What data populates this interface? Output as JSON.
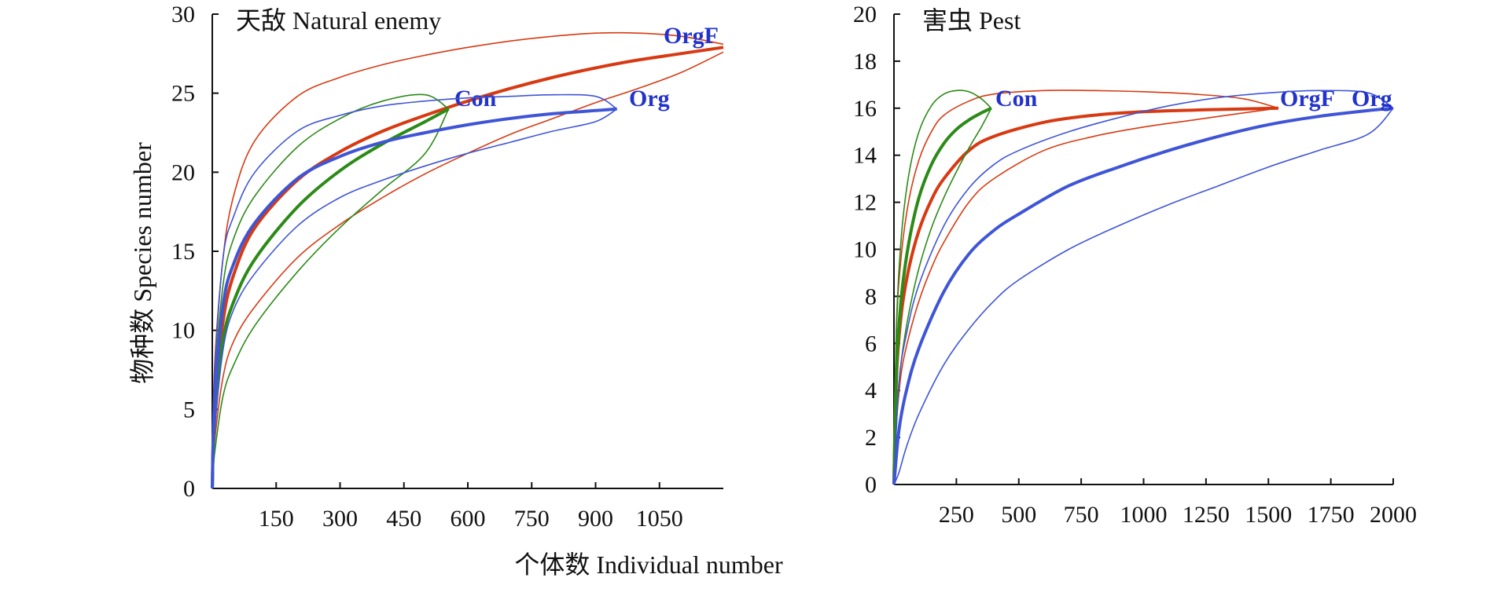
{
  "figure": {
    "y_axis_title": "物种数 Species number",
    "x_axis_title": "个体数 Individual number"
  },
  "chart_data": [
    {
      "type": "line",
      "title": "天敌 Natural enemy",
      "ylabel": "物种数 Species number",
      "xlabel": "个体数 Individual number",
      "xlim": [
        0,
        1200
      ],
      "ylim": [
        0,
        30
      ],
      "x_ticks": [
        150,
        300,
        450,
        600,
        750,
        900,
        1050
      ],
      "y_ticks": [
        0,
        5,
        10,
        15,
        20,
        25,
        30
      ],
      "grid": false,
      "series": [
        {
          "name": "OrgF",
          "color": "#d73a12",
          "x": [
            0,
            5,
            25,
            50,
            100,
            200,
            300,
            400,
            500,
            600,
            700,
            800,
            900,
            1000,
            1100,
            1200
          ],
          "mean": [
            0,
            5.0,
            10.5,
            13.5,
            16.5,
            19.5,
            21.3,
            22.6,
            23.6,
            24.5,
            25.3,
            26.0,
            26.6,
            27.1,
            27.5,
            27.9
          ],
          "upper": [
            0,
            7.5,
            14.5,
            18.5,
            22.0,
            24.8,
            26.0,
            26.8,
            27.4,
            27.9,
            28.3,
            28.6,
            28.8,
            28.8,
            28.6,
            28.1
          ],
          "lower": [
            0,
            2.8,
            7.0,
            9.3,
            11.5,
            14.6,
            16.7,
            18.4,
            19.9,
            21.2,
            22.4,
            23.4,
            24.4,
            25.3,
            26.3,
            27.6
          ]
        },
        {
          "name": "Con",
          "color": "#2c8a17",
          "x": [
            0,
            5,
            25,
            50,
            100,
            200,
            300,
            400,
            500,
            555
          ],
          "mean": [
            0,
            4.2,
            9.3,
            11.8,
            14.5,
            17.8,
            20.1,
            21.8,
            23.2,
            24.0
          ],
          "upper": [
            0,
            6.3,
            12.8,
            15.8,
            18.5,
            21.6,
            23.4,
            24.5,
            24.9,
            24.0
          ],
          "lower": [
            0,
            2.1,
            5.8,
            7.8,
            10.3,
            13.7,
            16.5,
            18.9,
            21.2,
            24.0
          ]
        },
        {
          "name": "Org",
          "color": "#3f55d6",
          "x": [
            0,
            5,
            25,
            50,
            100,
            200,
            300,
            400,
            500,
            600,
            700,
            800,
            900,
            950
          ],
          "mean": [
            0,
            5.2,
            11.5,
            14.2,
            16.8,
            19.6,
            21.0,
            21.9,
            22.5,
            23.0,
            23.4,
            23.7,
            23.9,
            24.0
          ],
          "upper": [
            0,
            7.0,
            14.5,
            17.2,
            20.0,
            22.6,
            23.6,
            24.2,
            24.5,
            24.7,
            24.8,
            24.9,
            24.8,
            24.0
          ],
          "lower": [
            0,
            3.4,
            8.7,
            11.3,
            13.6,
            16.6,
            18.4,
            19.5,
            20.4,
            21.2,
            21.9,
            22.6,
            23.2,
            24.0
          ]
        }
      ]
    },
    {
      "type": "line",
      "title": "害虫 Pest",
      "xlim": [
        0,
        2000
      ],
      "ylim": [
        0,
        20
      ],
      "x_ticks": [
        250,
        500,
        750,
        1000,
        1250,
        1500,
        1750,
        2000
      ],
      "y_ticks": [
        0,
        2,
        4,
        6,
        8,
        10,
        12,
        14,
        16,
        18,
        20
      ],
      "grid": false,
      "series": [
        {
          "name": "OrgF",
          "color": "#d73a12",
          "x": [
            0,
            10,
            30,
            60,
            100,
            150,
            200,
            300,
            400,
            600,
            800,
            1000,
            1200,
            1400,
            1540
          ],
          "mean": [
            0,
            4.6,
            7.3,
            9.2,
            10.8,
            12.1,
            13.0,
            14.2,
            14.8,
            15.4,
            15.7,
            15.85,
            15.92,
            15.97,
            16.0
          ],
          "upper": [
            0,
            6.6,
            9.8,
            12.1,
            13.8,
            15.0,
            15.7,
            16.3,
            16.6,
            16.75,
            16.75,
            16.7,
            16.6,
            16.4,
            16.0
          ],
          "lower": [
            0,
            2.6,
            4.8,
            6.3,
            7.8,
            9.2,
            10.3,
            12.0,
            13.0,
            14.2,
            14.8,
            15.2,
            15.5,
            15.8,
            16.0
          ]
        },
        {
          "name": "Con",
          "color": "#2c8a17",
          "x": [
            0,
            10,
            30,
            60,
            100,
            150,
            200,
            250,
            300,
            350,
            390
          ],
          "mean": [
            0,
            4.9,
            8.0,
            10.3,
            12.2,
            13.6,
            14.5,
            15.1,
            15.5,
            15.8,
            16.0
          ],
          "upper": [
            0,
            6.8,
            10.6,
            13.2,
            15.0,
            16.1,
            16.6,
            16.75,
            16.7,
            16.4,
            16.0
          ],
          "lower": [
            0,
            3.0,
            5.3,
            7.3,
            9.2,
            10.9,
            12.2,
            13.3,
            14.3,
            15.2,
            16.0
          ]
        },
        {
          "name": "Org",
          "color": "#3f55d6",
          "x": [
            0,
            20,
            50,
            100,
            200,
            300,
            400,
            500,
            700,
            900,
            1100,
            1300,
            1500,
            1700,
            1900,
            2000
          ],
          "mean": [
            0,
            2.3,
            4.0,
            5.8,
            8.2,
            9.8,
            10.8,
            11.5,
            12.7,
            13.5,
            14.2,
            14.8,
            15.3,
            15.65,
            15.9,
            16.0
          ],
          "upper": [
            0,
            4.3,
            6.4,
            8.5,
            11.0,
            12.6,
            13.6,
            14.2,
            15.0,
            15.6,
            16.1,
            16.45,
            16.65,
            16.75,
            16.65,
            16.0
          ],
          "lower": [
            0,
            0.5,
            1.6,
            3.0,
            5.1,
            6.6,
            7.8,
            8.7,
            10.0,
            11.0,
            11.9,
            12.7,
            13.5,
            14.2,
            14.9,
            16.0
          ]
        }
      ]
    }
  ]
}
